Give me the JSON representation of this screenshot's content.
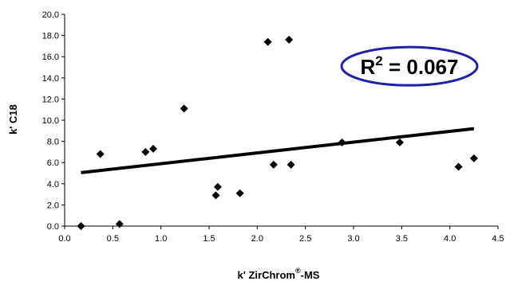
{
  "chart_data": {
    "type": "scatter",
    "xlabel": "k' ZirChrom",
    "xlabel_superscript": "®",
    "xlabel_suffix": "-MS",
    "ylabel": "k'  C18",
    "xlim": [
      0,
      4.5
    ],
    "ylim": [
      0,
      20
    ],
    "x_ticks": [
      "0.0",
      "0.5",
      "1.0",
      "1.5",
      "2.0",
      "2.5",
      "3.0",
      "3.5",
      "4.0",
      "4.5"
    ],
    "y_ticks": [
      "0.0",
      "2.0",
      "4.0",
      "6.0",
      "8.0",
      "10.0",
      "12.0",
      "14.0",
      "16.0",
      "18.0",
      "20.0"
    ],
    "grid": false,
    "legend": "none",
    "marker": "diamond",
    "marker_color": "#000000",
    "points": [
      {
        "x": 0.17,
        "y": 0.0
      },
      {
        "x": 0.37,
        "y": 6.8
      },
      {
        "x": 0.57,
        "y": 0.2
      },
      {
        "x": 0.84,
        "y": 7.0
      },
      {
        "x": 0.92,
        "y": 7.3
      },
      {
        "x": 1.24,
        "y": 11.1
      },
      {
        "x": 1.57,
        "y": 2.9
      },
      {
        "x": 1.59,
        "y": 3.7
      },
      {
        "x": 1.82,
        "y": 3.1
      },
      {
        "x": 2.11,
        "y": 17.4
      },
      {
        "x": 2.17,
        "y": 5.8
      },
      {
        "x": 2.33,
        "y": 17.6
      },
      {
        "x": 2.35,
        "y": 5.8
      },
      {
        "x": 2.88,
        "y": 7.9
      },
      {
        "x": 3.48,
        "y": 7.9
      },
      {
        "x": 4.09,
        "y": 5.6
      },
      {
        "x": 4.25,
        "y": 6.4
      }
    ],
    "trendline": {
      "x_start": 0.17,
      "y_start": 5.05,
      "x_end": 4.25,
      "y_end": 9.2,
      "color": "#000000"
    },
    "annotation": {
      "text_main": "R",
      "text_sup": "2",
      "text_rest": " = 0.067",
      "border_color": "#1f1fa8",
      "anchor_x": 3.58,
      "anchor_y": 15.1
    }
  }
}
